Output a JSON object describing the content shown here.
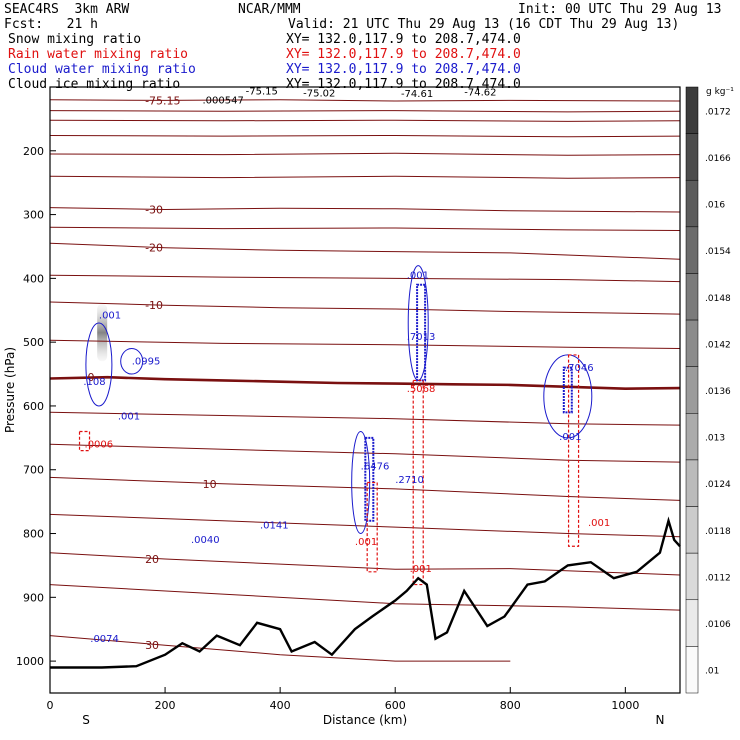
{
  "header": {
    "title_left": "SEAC4RS  3km ARW",
    "title_center": "NCAR/MMM",
    "init": "Init: 00 UTC Thu 29 Aug 13",
    "fcst": "Fcst:   21 h",
    "valid": "Valid: 21 UTC Thu 29 Aug 13 (16 CDT Thu 29 Aug 13)",
    "fields": [
      {
        "name": "Snow mixing ratio",
        "xy": "XY= 132.0,117.9 to 208.7,474.0",
        "color": "#000000"
      },
      {
        "name": "Rain water mixing ratio",
        "xy": "XY= 132.0,117.9 to 208.7,474.0",
        "color": "#e01010"
      },
      {
        "name": "Cloud water mixing ratio",
        "xy": "XY= 132.0,117.9 to 208.7,474.0",
        "color": "#1a1acc"
      },
      {
        "name": "Cloud ice mixing ratio",
        "xy": "XY= 132.0,117.9 to 208.7,474.0",
        "color": "#000000"
      }
    ]
  },
  "chart_data": {
    "type": "cross-section",
    "xlabel": "Distance (km)",
    "ylabel": "Pressure (hPa)",
    "xlim": [
      0,
      1095
    ],
    "ylim": [
      1050,
      100
    ],
    "x_ticks": [
      0,
      200,
      400,
      600,
      800,
      1000
    ],
    "y_ticks": [
      200,
      300,
      400,
      500,
      600,
      700,
      800,
      900,
      1000
    ],
    "end_labels": {
      "left": "S",
      "right": "N"
    },
    "colorbar": {
      "unit": "g kg⁻¹",
      "labels": [
        ".0172",
        ".0166",
        ".016",
        ".0154",
        ".0148",
        ".0142",
        ".0136",
        ".013",
        ".0124",
        ".0118",
        ".0112",
        ".0106",
        ".01"
      ]
    },
    "temperature_contours": [
      {
        "label": "-75.15",
        "points": [
          [
            0,
            120
          ],
          [
            200,
            121
          ],
          [
            400,
            120
          ],
          [
            600,
            122
          ],
          [
            800,
            121
          ],
          [
            1095,
            122
          ]
        ]
      },
      {
        "label": "",
        "points": [
          [
            0,
            137
          ],
          [
            300,
            138
          ],
          [
            600,
            137
          ],
          [
            900,
            139
          ],
          [
            1095,
            138
          ]
        ]
      },
      {
        "label": "",
        "points": [
          [
            0,
            152
          ],
          [
            300,
            153
          ],
          [
            600,
            152
          ],
          [
            900,
            154
          ],
          [
            1095,
            153
          ]
        ]
      },
      {
        "label": "",
        "points": [
          [
            0,
            176
          ],
          [
            300,
            177
          ],
          [
            600,
            176
          ],
          [
            900,
            178
          ],
          [
            1095,
            177
          ]
        ]
      },
      {
        "label": "",
        "points": [
          [
            0,
            205
          ],
          [
            300,
            206
          ],
          [
            600,
            204
          ],
          [
            900,
            207
          ],
          [
            1095,
            206
          ]
        ]
      },
      {
        "label": "",
        "points": [
          [
            0,
            240
          ],
          [
            300,
            242
          ],
          [
            600,
            240
          ],
          [
            900,
            243
          ],
          [
            1095,
            242
          ]
        ]
      },
      {
        "label": "-30",
        "points": [
          [
            0,
            289
          ],
          [
            200,
            292
          ],
          [
            400,
            290
          ],
          [
            600,
            291
          ],
          [
            800,
            294
          ],
          [
            1095,
            296
          ]
        ]
      },
      {
        "label": "",
        "points": [
          [
            0,
            320
          ],
          [
            300,
            322
          ],
          [
            600,
            321
          ],
          [
            900,
            324
          ],
          [
            1095,
            325
          ]
        ]
      },
      {
        "label": "-20",
        "points": [
          [
            0,
            345
          ],
          [
            200,
            352
          ],
          [
            400,
            356
          ],
          [
            600,
            358
          ],
          [
            800,
            360
          ],
          [
            1095,
            370
          ]
        ]
      },
      {
        "label": "",
        "points": [
          [
            0,
            395
          ],
          [
            300,
            398
          ],
          [
            600,
            400
          ],
          [
            900,
            402
          ],
          [
            1095,
            405
          ]
        ]
      },
      {
        "label": "-10",
        "points": [
          [
            0,
            437
          ],
          [
            200,
            442
          ],
          [
            400,
            446
          ],
          [
            600,
            448
          ],
          [
            800,
            452
          ],
          [
            1095,
            456
          ]
        ]
      },
      {
        "label": "",
        "points": [
          [
            0,
            497
          ],
          [
            300,
            502
          ],
          [
            600,
            504
          ],
          [
            900,
            508
          ],
          [
            1095,
            510
          ]
        ]
      },
      {
        "label": "0",
        "bold": true,
        "points": [
          [
            0,
            557
          ],
          [
            100,
            555
          ],
          [
            200,
            558
          ],
          [
            300,
            560
          ],
          [
            400,
            562
          ],
          [
            500,
            564
          ],
          [
            600,
            565
          ],
          [
            700,
            566
          ],
          [
            800,
            567
          ],
          [
            900,
            570
          ],
          [
            1000,
            573
          ],
          [
            1095,
            572
          ]
        ]
      },
      {
        "label": "",
        "points": [
          [
            0,
            610
          ],
          [
            300,
            615
          ],
          [
            600,
            620
          ],
          [
            900,
            628
          ],
          [
            1095,
            630
          ]
        ]
      },
      {
        "label": "",
        "points": [
          [
            0,
            660
          ],
          [
            300,
            668
          ],
          [
            600,
            675
          ],
          [
            900,
            685
          ],
          [
            1095,
            688
          ]
        ]
      },
      {
        "label": "10",
        "points": [
          [
            0,
            712
          ],
          [
            300,
            722
          ],
          [
            600,
            730
          ],
          [
            900,
            742
          ],
          [
            1095,
            748
          ]
        ]
      },
      {
        "label": "",
        "points": [
          [
            0,
            770
          ],
          [
            300,
            780
          ],
          [
            600,
            790
          ],
          [
            900,
            800
          ],
          [
            1095,
            805
          ]
        ]
      },
      {
        "label": "20",
        "points": [
          [
            0,
            830
          ],
          [
            200,
            840
          ],
          [
            400,
            848
          ],
          [
            600,
            856
          ],
          [
            800,
            855
          ],
          [
            1095,
            865
          ]
        ]
      },
      {
        "label": "",
        "points": [
          [
            0,
            880
          ],
          [
            300,
            895
          ],
          [
            600,
            910
          ],
          [
            900,
            915
          ],
          [
            1095,
            920
          ]
        ]
      },
      {
        "label": "30",
        "points": [
          [
            0,
            960
          ],
          [
            200,
            975
          ],
          [
            400,
            990
          ],
          [
            600,
            1000
          ],
          [
            800,
            1000
          ]
        ]
      }
    ],
    "terrain": [
      [
        0,
        1010
      ],
      [
        90,
        1010
      ],
      [
        150,
        1008
      ],
      [
        200,
        990
      ],
      [
        230,
        972
      ],
      [
        260,
        985
      ],
      [
        290,
        960
      ],
      [
        330,
        975
      ],
      [
        360,
        940
      ],
      [
        400,
        950
      ],
      [
        420,
        985
      ],
      [
        460,
        970
      ],
      [
        490,
        990
      ],
      [
        530,
        950
      ],
      [
        560,
        930
      ],
      [
        600,
        905
      ],
      [
        620,
        890
      ],
      [
        640,
        870
      ],
      [
        655,
        880
      ],
      [
        670,
        965
      ],
      [
        690,
        955
      ],
      [
        720,
        890
      ],
      [
        760,
        945
      ],
      [
        790,
        930
      ],
      [
        830,
        880
      ],
      [
        860,
        875
      ],
      [
        900,
        850
      ],
      [
        940,
        845
      ],
      [
        980,
        870
      ],
      [
        1020,
        860
      ],
      [
        1060,
        830
      ],
      [
        1075,
        780
      ],
      [
        1085,
        810
      ],
      [
        1095,
        820
      ]
    ],
    "labels": [
      {
        "text": "-75.15",
        "x": 340,
        "p": 112,
        "color": "#000000"
      },
      {
        "text": "-75.02",
        "x": 440,
        "p": 115,
        "color": "#000000"
      },
      {
        "text": "-74.61",
        "x": 610,
        "p": 116,
        "color": "#000000"
      },
      {
        "text": "-74.62",
        "x": 720,
        "p": 113,
        "color": "#000000"
      },
      {
        "text": ".000547",
        "x": 265,
        "p": 126,
        "color": "#000000"
      },
      {
        "text": ".001",
        "x": 85,
        "p": 463,
        "color": "#1a1acc"
      },
      {
        "text": ".0995",
        "x": 142,
        "p": 535,
        "color": "#1a1acc"
      },
      {
        "text": ".108",
        "x": 58,
        "p": 567,
        "color": "#1a1acc"
      },
      {
        "text": ".001",
        "x": 118,
        "p": 621,
        "color": "#1a1acc"
      },
      {
        "text": ".0006",
        "x": 60,
        "p": 665,
        "color": "#e01010"
      },
      {
        "text": ".0040",
        "x": 245,
        "p": 815,
        "color": "#1a1acc"
      },
      {
        "text": ".0141",
        "x": 365,
        "p": 792,
        "color": "#1a1acc"
      },
      {
        "text": ".0074",
        "x": 70,
        "p": 970,
        "color": "#1a1acc"
      },
      {
        "text": ".6476",
        "x": 540,
        "p": 700,
        "color": "#1a1acc"
      },
      {
        "text": ".001",
        "x": 530,
        "p": 818,
        "color": "#e01010"
      },
      {
        "text": ".2710",
        "x": 600,
        "p": 721,
        "color": "#1a1acc"
      },
      {
        "text": ".001",
        "x": 625,
        "p": 860,
        "color": "#e01010"
      },
      {
        "text": ".001",
        "x": 620,
        "p": 400,
        "color": "#1a1acc"
      },
      {
        "text": ".7013",
        "x": 620,
        "p": 497,
        "color": "#1a1acc"
      },
      {
        "text": ".5068",
        "x": 620,
        "p": 578,
        "color": "#e01010"
      },
      {
        "text": ".7046",
        "x": 895,
        "p": 545,
        "color": "#1a1acc"
      },
      {
        "text": ".001",
        "x": 885,
        "p": 653,
        "color": "#1a1acc"
      },
      {
        "text": ".001",
        "x": 935,
        "p": 788,
        "color": "#e01010"
      }
    ]
  }
}
